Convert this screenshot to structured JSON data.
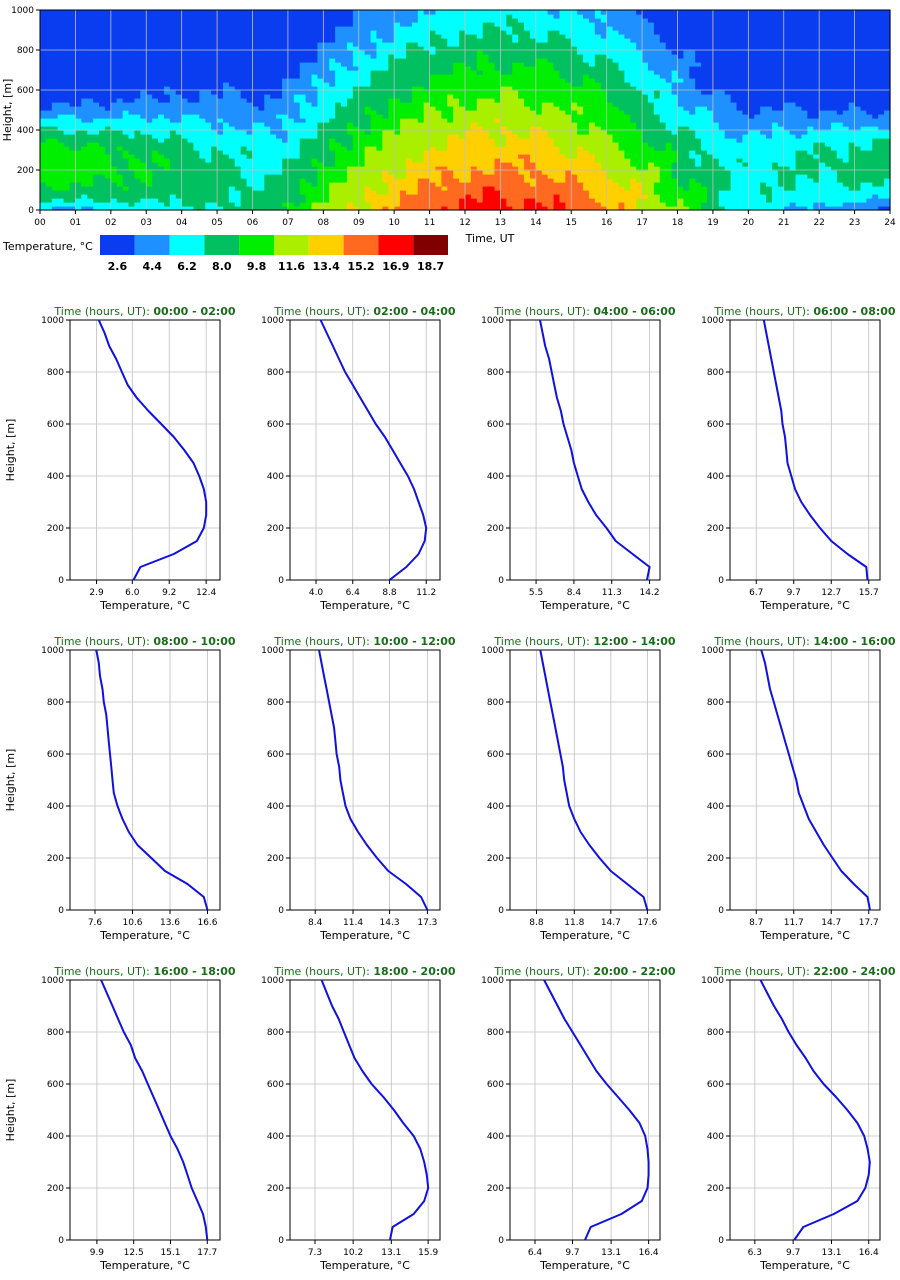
{
  "chart_data": {
    "heatmap": {
      "type": "heatmap",
      "xlabel": "Time, UT",
      "ylabel": "Height, [m]",
      "x_ticks": [
        "00",
        "01",
        "02",
        "03",
        "04",
        "05",
        "06",
        "07",
        "08",
        "09",
        "10",
        "11",
        "12",
        "13",
        "14",
        "15",
        "16",
        "17",
        "18",
        "19",
        "20",
        "21",
        "22",
        "23",
        "24"
      ],
      "y_ticks": [
        "0",
        "200",
        "400",
        "600",
        "800",
        "1000"
      ],
      "xlim": [
        0,
        24
      ],
      "ylim": [
        0,
        1000
      ],
      "legend_title": "Temperature, °C",
      "legend_colors": [
        "#0a3cf0",
        "#1e90ff",
        "#00ffff",
        "#00c060",
        "#00ee00",
        "#aaee00",
        "#ffd000",
        "#ff6a20",
        "#ff0000",
        "#800000"
      ],
      "legend_values": [
        "2.6",
        "4.4",
        "6.2",
        "8.0",
        "9.8",
        "11.6",
        "13.4",
        "15.2",
        "16.9",
        "18.7"
      ],
      "bands": [
        [
          0,
          80,
          0,
          1,
          7.0,
          3.0,
          5.0,
          5.0
        ],
        [
          0,
          80,
          1,
          2,
          6.0,
          3.0,
          3.5,
          5.0
        ],
        [
          0,
          80,
          2,
          3,
          6.0,
          4.0,
          3.5,
          5.0
        ],
        [
          0,
          80,
          3,
          4,
          6.5,
          5.0,
          4.0,
          5.0
        ],
        [
          0,
          80,
          4,
          5,
          7.0,
          6.0,
          5.0,
          6.0
        ],
        [
          0,
          80,
          5,
          6,
          7.5,
          6.5,
          6.0,
          6.0
        ],
        [
          0,
          80,
          6,
          7,
          7.5,
          6.5,
          6.5,
          6.5
        ],
        [
          0,
          80,
          7,
          8,
          7.5,
          7.0,
          6.5,
          6.5
        ],
        [
          0,
          80,
          8,
          9,
          8.0,
          7.0,
          7.0,
          7.0
        ],
        [
          0,
          80,
          9,
          10,
          8.0,
          7.0,
          7.0,
          7.0
        ],
        [
          0,
          80,
          10,
          11,
          8.0,
          7.0,
          7.0,
          7.0
        ],
        [
          0,
          80,
          11,
          12,
          8.0,
          7.0,
          7.0,
          7.0
        ],
        [
          0,
          80,
          12,
          13,
          8.0,
          7.0,
          7.0,
          7.0
        ],
        [
          0,
          80,
          13,
          14,
          8.0,
          7.0,
          7.0,
          7.0
        ],
        [
          0,
          80,
          14,
          15,
          8.0,
          7.0,
          7.0,
          7.0
        ],
        [
          0,
          80,
          15,
          16,
          8.0,
          7.0,
          7.0,
          7.0
        ],
        [
          0,
          80,
          16,
          17,
          8.0,
          7.0,
          7.0,
          7.0
        ],
        [
          0,
          80,
          17,
          18,
          8.0,
          7.0,
          7.0,
          7.0
        ]
      ]
    },
    "profiles": [
      {
        "title_label": "Time (hours, UT):",
        "title_range": "00:00 - 02:00",
        "xticks": [
          "2.9",
          "6.0",
          "9.2",
          "12.4"
        ],
        "xlim": [
          0.6,
          13.6
        ],
        "x": [
          6.1,
          6.7,
          9.6,
          11.6,
          12.2,
          12.4,
          12.4,
          12.2,
          11.8,
          11.3,
          10.5,
          9.6,
          8.5,
          7.4,
          6.4,
          5.6,
          5.1,
          4.6,
          4.0,
          3.6,
          3.1
        ],
        "y": [
          0,
          50,
          100,
          150,
          200,
          250,
          300,
          350,
          400,
          450,
          500,
          550,
          600,
          650,
          700,
          750,
          800,
          850,
          900,
          950,
          1000
        ]
      },
      {
        "title_label": "Time (hours, UT):",
        "title_range": "02:00 - 04:00",
        "xticks": [
          "4.0",
          "6.4",
          "8.8",
          "11.2"
        ],
        "xlim": [
          2.3,
          12.1
        ],
        "x": [
          8.8,
          9.9,
          10.7,
          11.1,
          11.2,
          11.0,
          10.7,
          10.4,
          10.0,
          9.5,
          9.0,
          8.5,
          7.9,
          7.4,
          6.9,
          6.4,
          5.9,
          5.5,
          5.1,
          4.7,
          4.3
        ],
        "y": [
          0,
          50,
          100,
          150,
          200,
          250,
          300,
          350,
          400,
          450,
          500,
          550,
          600,
          650,
          700,
          750,
          800,
          850,
          900,
          950,
          1000
        ]
      },
      {
        "title_label": "Time (hours, UT):",
        "title_range": "04:00 - 06:00",
        "xticks": [
          "5.5",
          "8.4",
          "11.3",
          "14.2"
        ],
        "xlim": [
          3.5,
          15.0
        ],
        "x": [
          14.0,
          14.2,
          12.9,
          11.6,
          10.9,
          10.1,
          9.5,
          9.0,
          8.7,
          8.4,
          8.2,
          7.9,
          7.6,
          7.4,
          7.1,
          6.9,
          6.7,
          6.5,
          6.2,
          6.0,
          5.8
        ],
        "y": [
          0,
          50,
          100,
          150,
          200,
          250,
          300,
          350,
          400,
          450,
          500,
          550,
          600,
          650,
          700,
          750,
          800,
          850,
          900,
          950,
          1000
        ]
      },
      {
        "title_label": "Time (hours, UT):",
        "title_range": "06:00 - 08:00",
        "xticks": [
          "6.7",
          "9.7",
          "12.7",
          "15.7"
        ],
        "xlim": [
          4.6,
          16.6
        ],
        "x": [
          15.6,
          15.5,
          14.0,
          12.7,
          11.8,
          11.0,
          10.3,
          9.8,
          9.5,
          9.2,
          9.1,
          9.0,
          8.8,
          8.7,
          8.5,
          8.3,
          8.1,
          7.9,
          7.7,
          7.5,
          7.3
        ],
        "y": [
          0,
          50,
          100,
          150,
          200,
          250,
          300,
          350,
          400,
          450,
          500,
          550,
          600,
          650,
          700,
          750,
          800,
          850,
          900,
          950,
          1000
        ]
      },
      {
        "title_label": "Time (hours, UT):",
        "title_range": "08:00 - 10:00",
        "xticks": [
          "7.6",
          "10.6",
          "13.6",
          "16.6"
        ],
        "xlim": [
          5.6,
          17.6
        ],
        "x": [
          16.6,
          16.3,
          15.0,
          13.2,
          12.1,
          11.0,
          10.3,
          9.8,
          9.4,
          9.1,
          9.0,
          8.9,
          8.8,
          8.7,
          8.6,
          8.5,
          8.3,
          8.2,
          8.0,
          7.9,
          7.7
        ],
        "y": [
          0,
          50,
          100,
          150,
          200,
          250,
          300,
          350,
          400,
          450,
          500,
          550,
          600,
          650,
          700,
          750,
          800,
          850,
          900,
          950,
          1000
        ]
      },
      {
        "title_label": "Time (hours, UT):",
        "title_range": "10:00 - 12:00",
        "xticks": [
          "8.4",
          "11.4",
          "14.3",
          "17.3"
        ],
        "xlim": [
          6.4,
          18.3
        ],
        "x": [
          17.3,
          16.8,
          15.6,
          14.2,
          13.3,
          12.5,
          11.8,
          11.2,
          10.8,
          10.6,
          10.4,
          10.3,
          10.1,
          10.0,
          9.9,
          9.7,
          9.5,
          9.3,
          9.1,
          8.9,
          8.7
        ],
        "y": [
          0,
          50,
          100,
          150,
          200,
          250,
          300,
          350,
          400,
          450,
          500,
          550,
          600,
          650,
          700,
          750,
          800,
          850,
          900,
          950,
          1000
        ]
      },
      {
        "title_label": "Time (hours, UT):",
        "title_range": "12:00 - 14:00",
        "xticks": [
          "8.8",
          "11.8",
          "14.7",
          "17.6"
        ],
        "xlim": [
          6.7,
          18.6
        ],
        "x": [
          17.6,
          17.3,
          16.0,
          14.7,
          13.8,
          13.0,
          12.3,
          11.8,
          11.4,
          11.2,
          11.0,
          10.9,
          10.7,
          10.5,
          10.3,
          10.1,
          9.9,
          9.7,
          9.5,
          9.3,
          9.1
        ],
        "y": [
          0,
          50,
          100,
          150,
          200,
          250,
          300,
          350,
          400,
          450,
          500,
          550,
          600,
          650,
          700,
          750,
          800,
          850,
          900,
          950,
          1000
        ]
      },
      {
        "title_label": "Time (hours, UT):",
        "title_range": "14:00 - 16:00",
        "xticks": [
          "8.7",
          "11.7",
          "14.7",
          "17.7"
        ],
        "xlim": [
          6.6,
          18.6
        ],
        "x": [
          17.8,
          17.6,
          16.5,
          15.5,
          14.8,
          14.1,
          13.5,
          12.9,
          12.5,
          12.1,
          11.9,
          11.6,
          11.3,
          11.0,
          10.7,
          10.4,
          10.1,
          9.8,
          9.6,
          9.4,
          9.1
        ],
        "y": [
          0,
          50,
          100,
          150,
          200,
          250,
          300,
          350,
          400,
          450,
          500,
          550,
          600,
          650,
          700,
          750,
          800,
          850,
          900,
          950,
          1000
        ]
      },
      {
        "title_label": "Time (hours, UT):",
        "title_range": "16:00 - 18:00",
        "xticks": [
          "9.9",
          "12.5",
          "15.1",
          "17.7"
        ],
        "xlim": [
          8.0,
          18.6
        ],
        "x": [
          17.7,
          17.6,
          17.4,
          17.0,
          16.6,
          16.3,
          16.0,
          15.6,
          15.1,
          14.7,
          14.3,
          13.9,
          13.5,
          13.1,
          12.6,
          12.3,
          11.8,
          11.4,
          11.0,
          10.6,
          10.2
        ],
        "y": [
          0,
          50,
          100,
          150,
          200,
          250,
          300,
          350,
          400,
          450,
          500,
          550,
          600,
          650,
          700,
          750,
          800,
          850,
          900,
          950,
          1000
        ]
      },
      {
        "title_label": "Time (hours, UT):",
        "title_range": "18:00 - 20:00",
        "xticks": [
          "7.3",
          "10.2",
          "13.1",
          "15.9"
        ],
        "xlim": [
          5.4,
          16.8
        ],
        "x": [
          13.0,
          13.2,
          14.8,
          15.6,
          15.9,
          15.8,
          15.6,
          15.3,
          14.8,
          14.0,
          13.3,
          12.5,
          11.6,
          10.9,
          10.3,
          9.9,
          9.5,
          9.1,
          8.6,
          8.2,
          7.8
        ],
        "y": [
          0,
          50,
          100,
          150,
          200,
          250,
          300,
          350,
          400,
          450,
          500,
          550,
          600,
          650,
          700,
          750,
          800,
          850,
          900,
          950,
          1000
        ]
      },
      {
        "title_label": "Time (hours, UT):",
        "title_range": "20:00 - 22:00",
        "xticks": [
          "6.4",
          "9.7",
          "13.1",
          "16.4"
        ],
        "xlim": [
          4.2,
          17.4
        ],
        "x": [
          10.8,
          11.3,
          14.0,
          15.8,
          16.3,
          16.4,
          16.4,
          16.3,
          16.1,
          15.6,
          14.7,
          13.7,
          12.7,
          11.8,
          11.1,
          10.4,
          9.7,
          9.0,
          8.4,
          7.8,
          7.2
        ],
        "y": [
          0,
          50,
          100,
          150,
          200,
          250,
          300,
          350,
          400,
          450,
          500,
          550,
          600,
          650,
          700,
          750,
          800,
          850,
          900,
          950,
          1000
        ]
      },
      {
        "title_label": "Time (hours, UT):",
        "title_range": "22:00 - 24:00",
        "xticks": [
          "6.3",
          "9.7",
          "13.1",
          "16.4"
        ],
        "xlim": [
          4.1,
          17.4
        ],
        "x": [
          9.8,
          10.6,
          13.3,
          15.4,
          16.1,
          16.4,
          16.5,
          16.3,
          16.0,
          15.4,
          14.5,
          13.5,
          12.4,
          11.5,
          10.8,
          10.0,
          9.3,
          8.7,
          8.0,
          7.4,
          6.8
        ],
        "y": [
          0,
          50,
          100,
          150,
          200,
          250,
          300,
          350,
          400,
          450,
          500,
          550,
          600,
          650,
          700,
          750,
          800,
          850,
          900,
          950,
          1000
        ]
      }
    ],
    "profile_xlabel": "Temperature, °C",
    "profile_ylabel": "Height, [m]",
    "profile_yticks": [
      "0",
      "200",
      "400",
      "600",
      "800",
      "1000"
    ]
  },
  "colors": {
    "line": "#1010e0",
    "grid": "#c0c0c0",
    "title": "#1a6b1a"
  }
}
